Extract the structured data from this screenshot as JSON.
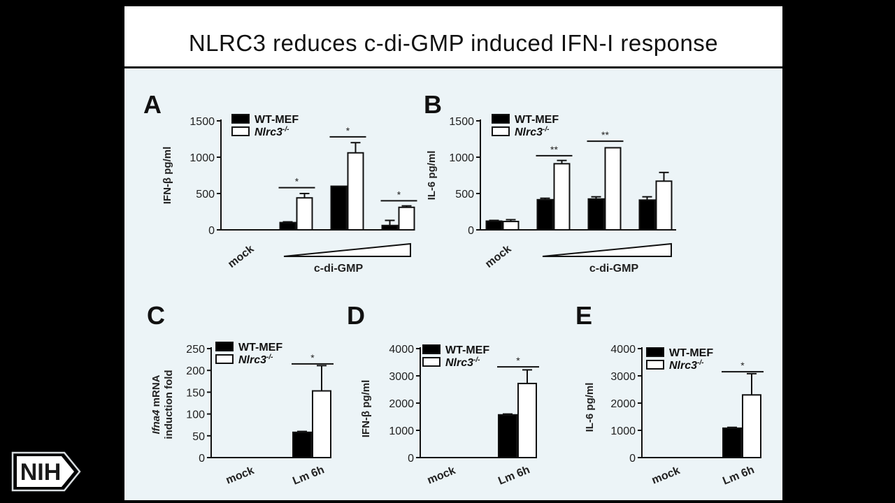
{
  "slide": {
    "title": "NLRC3 reduces c-di-GMP induced IFN-I response"
  },
  "logo": {
    "text": "NIH",
    "icon": "nih-logo-icon"
  },
  "colors": {
    "wt_bar": "#000000",
    "ko_bar": "#ffffff",
    "slide_bg": "#ecf4f7",
    "page_bg": "#000000"
  },
  "chart_data": [
    {
      "id": "A",
      "panel_label": "A",
      "type": "bar",
      "ylabel": "IFN-β pg/ml",
      "xlabel": "c-di-GMP",
      "ylim": [
        0,
        1500
      ],
      "yticks": [
        "0",
        "500",
        "1000",
        "1500"
      ],
      "categories": [
        "mock",
        "",
        "",
        ""
      ],
      "ramp": true,
      "series": [
        {
          "name": "WT-MEF",
          "name_suffix": "",
          "values": [
            0,
            100,
            600,
            60
          ],
          "errors": [
            0,
            10,
            0,
            70
          ]
        },
        {
          "name": "Nlrc3",
          "name_suffix": "-/-",
          "values": [
            0,
            440,
            1060,
            310
          ],
          "errors": [
            0,
            60,
            140,
            20
          ]
        }
      ],
      "annotations": [
        {
          "group": 1,
          "text": "*",
          "y": 580
        },
        {
          "group": 2,
          "text": "*",
          "y": 1280
        },
        {
          "group": 3,
          "text": "*",
          "y": 400
        }
      ]
    },
    {
      "id": "B",
      "panel_label": "B",
      "type": "bar",
      "ylabel": "IL-6 pg/ml",
      "xlabel": "c-di-GMP",
      "ylim": [
        0,
        1500
      ],
      "yticks": [
        "0",
        "500",
        "1000",
        "1500"
      ],
      "categories": [
        "mock",
        "",
        "",
        ""
      ],
      "ramp": true,
      "series": [
        {
          "name": "WT-MEF",
          "name_suffix": "",
          "values": [
            120,
            415,
            425,
            410
          ],
          "errors": [
            10,
            20,
            30,
            45
          ]
        },
        {
          "name": "Nlrc3",
          "name_suffix": "-/-",
          "values": [
            115,
            910,
            1130,
            670
          ],
          "errors": [
            25,
            45,
            0,
            120
          ]
        }
      ],
      "annotations": [
        {
          "group": 1,
          "text": "**",
          "y": 1020
        },
        {
          "group": 2,
          "text": "**",
          "y": 1220
        }
      ]
    },
    {
      "id": "C",
      "panel_label": "C",
      "type": "bar",
      "ylabel_italic": "Ifna4",
      "ylabel": " mRNA",
      "ylabel2": "induction fold",
      "xlabel": "",
      "ylim": [
        0,
        250
      ],
      "yticks": [
        "0",
        "50",
        "100",
        "150",
        "200",
        "250"
      ],
      "categories": [
        "mock",
        "Lm 6h"
      ],
      "ramp": false,
      "series": [
        {
          "name": "WT-MEF",
          "name_suffix": "",
          "values": [
            0,
            58
          ],
          "errors": [
            0,
            2
          ]
        },
        {
          "name": "Nlrc3",
          "name_suffix": "-/-",
          "values": [
            0,
            153
          ],
          "errors": [
            0,
            58
          ]
        }
      ],
      "annotations": [
        {
          "group": 1,
          "text": "*",
          "y": 215
        }
      ]
    },
    {
      "id": "D",
      "panel_label": "D",
      "type": "bar",
      "ylabel": "IFN-β pg/ml",
      "xlabel": "",
      "ylim": [
        0,
        4000
      ],
      "yticks": [
        "0",
        "1000",
        "2000",
        "3000",
        "4000"
      ],
      "categories": [
        "mock",
        "Lm 6h"
      ],
      "ramp": false,
      "series": [
        {
          "name": "WT-MEF",
          "name_suffix": "",
          "values": [
            0,
            1570
          ],
          "errors": [
            0,
            30
          ]
        },
        {
          "name": "Nlrc3",
          "name_suffix": "-/-",
          "values": [
            0,
            2720
          ],
          "errors": [
            0,
            500
          ]
        }
      ],
      "annotations": [
        {
          "group": 1,
          "text": "*",
          "y": 3330
        }
      ]
    },
    {
      "id": "E",
      "panel_label": "E",
      "type": "bar",
      "ylabel": "IL-6 pg/ml",
      "xlabel": "",
      "ylim": [
        0,
        4000
      ],
      "yticks": [
        "0",
        "1000",
        "2000",
        "3000",
        "4000"
      ],
      "categories": [
        "mock",
        "Lm 6h"
      ],
      "ramp": false,
      "series": [
        {
          "name": "WT-MEF",
          "name_suffix": "",
          "values": [
            0,
            1080
          ],
          "errors": [
            0,
            30
          ]
        },
        {
          "name": "Nlrc3",
          "name_suffix": "-/-",
          "values": [
            0,
            2300
          ],
          "errors": [
            0,
            780
          ]
        }
      ],
      "annotations": [
        {
          "group": 1,
          "text": "*",
          "y": 3150
        }
      ]
    }
  ]
}
